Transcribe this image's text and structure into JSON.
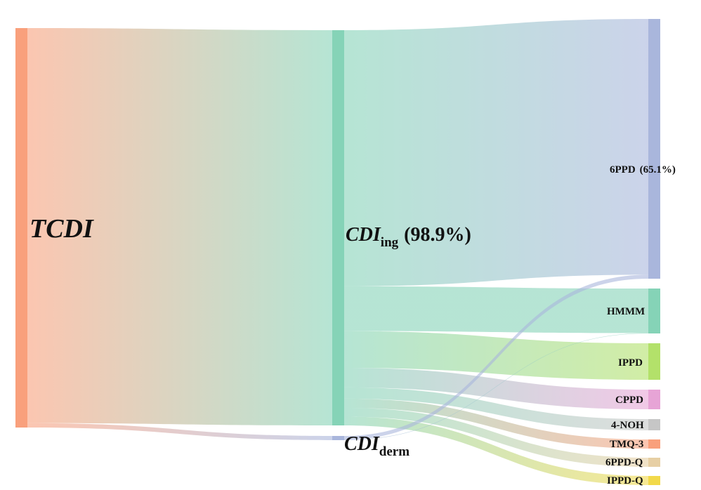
{
  "chart_data": {
    "type": "sankey",
    "nodes": [
      {
        "id": "tcdi",
        "label": "TCDI",
        "color": "#f9a07c"
      },
      {
        "id": "ing",
        "label": "CDI",
        "sub": "ing",
        "pct": "(98.9%)",
        "color": "#85d3b7"
      },
      {
        "id": "derm",
        "label": "CDI",
        "sub": "derm",
        "color": "#a9b6dc"
      },
      {
        "id": "6ppd",
        "label": "6PPD",
        "pct": "(65.1%)",
        "color": "#a9b6dc"
      },
      {
        "id": "hmmm",
        "label": "HMMM",
        "color": "#85d3b7"
      },
      {
        "id": "ippd",
        "label": "IPPD",
        "color": "#b3e16a"
      },
      {
        "id": "cppd",
        "label": "CPPD",
        "color": "#e7a4d6"
      },
      {
        "id": "4noh",
        "label": "4-NOH",
        "color": "#c6c6c6"
      },
      {
        "id": "tmq3",
        "label": "TMQ-3",
        "color": "#f9a07c"
      },
      {
        "id": "6ppdq",
        "label": "6PPD-Q",
        "color": "#e7cfa4"
      },
      {
        "id": "ippdq",
        "label": "IPPD-Q",
        "color": "#f2d94a"
      }
    ],
    "links": [
      {
        "source": "tcdi",
        "target": "ing",
        "value": 98.9
      },
      {
        "source": "tcdi",
        "target": "derm",
        "value": 1.1
      },
      {
        "source": "ing",
        "target": "6ppd",
        "value": 64.1
      },
      {
        "source": "ing",
        "target": "hmmm",
        "value": 11.2
      },
      {
        "source": "ing",
        "target": "ippd",
        "value": 9.2
      },
      {
        "source": "ing",
        "target": "cppd",
        "value": 4.9
      },
      {
        "source": "ing",
        "target": "4noh",
        "value": 2.8
      },
      {
        "source": "ing",
        "target": "tmq3",
        "value": 2.3
      },
      {
        "source": "ing",
        "target": "6ppdq",
        "value": 2.2
      },
      {
        "source": "ing",
        "target": "ippdq",
        "value": 2.2
      },
      {
        "source": "derm",
        "target": "6ppd",
        "value": 1.0
      },
      {
        "source": "derm",
        "target": "hmmm",
        "value": 0.1
      }
    ]
  }
}
